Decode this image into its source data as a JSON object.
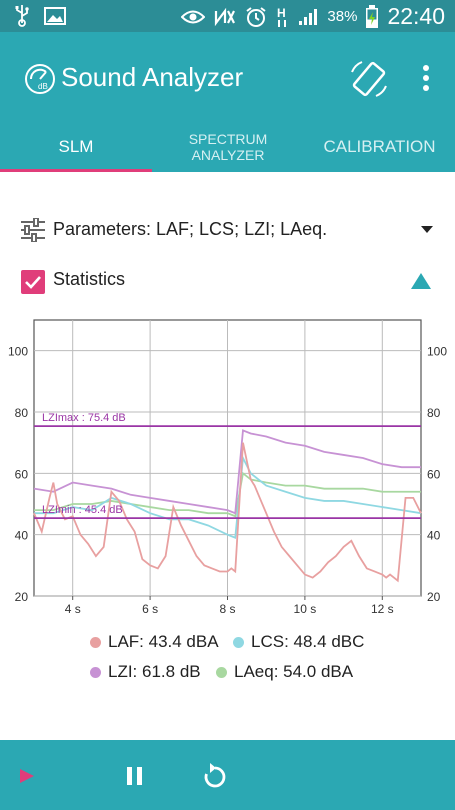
{
  "status_bar": {
    "battery_percent": "38%",
    "network_type": "H",
    "time": "22:40"
  },
  "app_bar": {
    "title": "Sound Analyzer",
    "logo_text": "dB",
    "tabs": [
      {
        "label": "SLM",
        "active": true
      },
      {
        "label": "SPECTRUM\nANALYZER",
        "active": false
      },
      {
        "label": "CALIBRATION",
        "active": false
      }
    ]
  },
  "parameters": {
    "label": "Parameters: LAF; LCS; LZI; LAeq."
  },
  "statistics": {
    "label": "Statistics",
    "checked": true
  },
  "colors": {
    "primary": "#2ba8b3",
    "status_bar": "#2c8d96",
    "accent": "#e03d7a",
    "laf": "#e8a0a0",
    "lcs": "#8fd8e2",
    "lzi": "#c792d4",
    "laeq": "#a8d8a0",
    "ref_line": "#9a35a5"
  },
  "chart_data": {
    "type": "line",
    "xlabel": "",
    "ylabel": "",
    "x_ticks": [
      "4 s",
      "6 s",
      "8 s",
      "10 s",
      "12 s"
    ],
    "x_tick_values": [
      4,
      6,
      8,
      10,
      12
    ],
    "xlim": [
      3,
      13
    ],
    "y_ticks": [
      "20",
      "40",
      "60",
      "80",
      "100"
    ],
    "y_tick_values": [
      20,
      40,
      60,
      80,
      100
    ],
    "ylim": [
      20,
      110
    ],
    "grid": true,
    "reference_lines": [
      {
        "label": "LZImax : 75.4 dB",
        "value": 75.4
      },
      {
        "label": "LZImin : 45.4 dB",
        "value": 45.4
      }
    ],
    "series": [
      {
        "name": "LAF",
        "x": [
          3.0,
          3.2,
          3.4,
          3.5,
          3.6,
          3.8,
          4.0,
          4.2,
          4.4,
          4.6,
          4.8,
          5.0,
          5.2,
          5.4,
          5.5,
          5.6,
          5.8,
          6.0,
          6.2,
          6.4,
          6.6,
          6.8,
          7.0,
          7.2,
          7.4,
          7.6,
          7.8,
          8.0,
          8.1,
          8.2,
          8.4,
          8.6,
          8.7,
          8.8,
          9.0,
          9.2,
          9.4,
          9.6,
          9.8,
          10.0,
          10.2,
          10.4,
          10.6,
          10.8,
          11.0,
          11.2,
          11.4,
          11.6,
          11.8,
          12.0,
          12.1,
          12.2,
          12.4,
          12.6,
          12.8,
          13.0
        ],
        "values": [
          47,
          41,
          52,
          57,
          50,
          45,
          46,
          40,
          37,
          33,
          36,
          54,
          51,
          45,
          43,
          41,
          32,
          30,
          29,
          33,
          49,
          43,
          38,
          33,
          30,
          29,
          28,
          28,
          29,
          28,
          70,
          58,
          56,
          53,
          47,
          41,
          36,
          33,
          30,
          27,
          26,
          28,
          31,
          33,
          36,
          38,
          33,
          29,
          28,
          27,
          26,
          27,
          25,
          52,
          52,
          47
        ]
      },
      {
        "name": "LCS",
        "x": [
          3.0,
          3.5,
          4.0,
          4.5,
          5.0,
          5.5,
          6.0,
          6.5,
          7.0,
          7.5,
          8.0,
          8.2,
          8.4,
          8.6,
          9.0,
          9.5,
          10.0,
          10.5,
          11.0,
          11.5,
          12.0,
          12.5,
          13.0
        ],
        "values": [
          47,
          47,
          49,
          48,
          52,
          50,
          47,
          45,
          45,
          43,
          40,
          39,
          65,
          60,
          56,
          54,
          52,
          51,
          51,
          50,
          49,
          48,
          47
        ]
      },
      {
        "name": "LZI",
        "x": [
          3.0,
          3.5,
          4.0,
          4.5,
          5.0,
          5.5,
          6.0,
          6.5,
          7.0,
          7.5,
          8.0,
          8.2,
          8.4,
          8.6,
          9.0,
          9.5,
          10.0,
          10.5,
          11.0,
          11.5,
          12.0,
          12.5,
          13.0
        ],
        "values": [
          55,
          54,
          57,
          56,
          55,
          53,
          52,
          51,
          50,
          49,
          48,
          47,
          74,
          73,
          72,
          70,
          69,
          67,
          66,
          65,
          63,
          62,
          62
        ]
      },
      {
        "name": "LAeq",
        "x": [
          3.0,
          3.5,
          4.0,
          4.5,
          5.0,
          5.5,
          6.0,
          6.5,
          7.0,
          7.5,
          8.0,
          8.2,
          8.4,
          8.6,
          9.0,
          9.5,
          10.0,
          10.5,
          11.0,
          11.5,
          12.0,
          12.5,
          13.0
        ],
        "values": [
          48,
          48,
          50,
          50,
          51,
          50,
          49,
          48,
          48,
          47,
          47,
          46,
          60,
          58,
          57,
          56,
          56,
          55,
          55,
          55,
          54,
          54,
          54
        ]
      }
    ]
  },
  "legend": {
    "laf": "LAF: 43.4 dBA",
    "lcs": "LCS: 48.4 dBC",
    "lzi": "LZI: 61.8 dB",
    "laeq": "LAeq: 54.0 dBA"
  }
}
